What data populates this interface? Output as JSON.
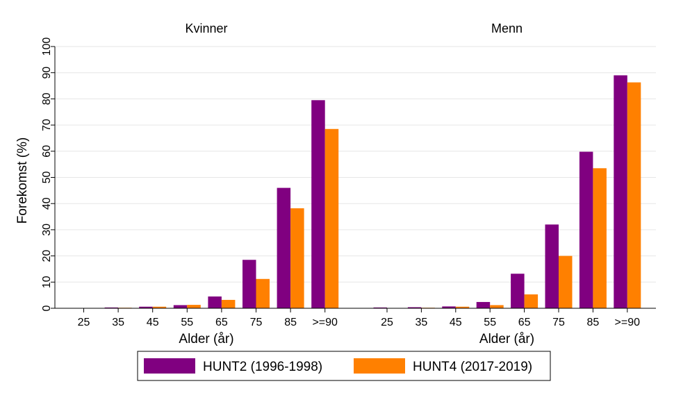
{
  "y_axis_label": "Forekomst (%)",
  "colors": {
    "hunt2": "#800080",
    "hunt4": "#ff8000",
    "grid": "#e6e6e6"
  },
  "chart_data": [
    {
      "type": "bar",
      "title": "Kvinner",
      "xlabel": "Alder (år)",
      "ylabel": "Forekomst (%)",
      "ylim": [
        0,
        100
      ],
      "yticks": [
        0,
        10,
        20,
        30,
        40,
        50,
        60,
        70,
        80,
        90,
        100
      ],
      "grid": true,
      "categories": [
        "25",
        "35",
        "45",
        "55",
        "65",
        "75",
        "85",
        ">=90"
      ],
      "series": [
        {
          "name": "HUNT2 (1996-1998)",
          "values": [
            0.1,
            0.3,
            0.6,
            1.2,
            4.5,
            18.5,
            46.0,
            79.5
          ]
        },
        {
          "name": "HUNT4 (2017-2019)",
          "values": [
            0.0,
            0.2,
            0.6,
            1.3,
            3.2,
            11.2,
            38.2,
            68.5
          ]
        }
      ]
    },
    {
      "type": "bar",
      "title": "Menn",
      "xlabel": "Alder (år)",
      "ylim": [
        0,
        100
      ],
      "grid": true,
      "categories": [
        "25",
        "35",
        "45",
        "55",
        "65",
        "75",
        "85",
        ">=90"
      ],
      "series": [
        {
          "name": "HUNT2 (1996-1998)",
          "values": [
            0.3,
            0.4,
            0.7,
            2.4,
            13.2,
            32.0,
            59.8,
            89.0
          ]
        },
        {
          "name": "HUNT4 (2017-2019)",
          "values": [
            0.0,
            0.2,
            0.6,
            1.2,
            5.3,
            20.0,
            53.5,
            86.3
          ]
        }
      ]
    }
  ],
  "legend": {
    "placement": "bottom-center",
    "items": [
      "HUNT2 (1996-1998)",
      "HUNT4 (2017-2019)"
    ]
  }
}
